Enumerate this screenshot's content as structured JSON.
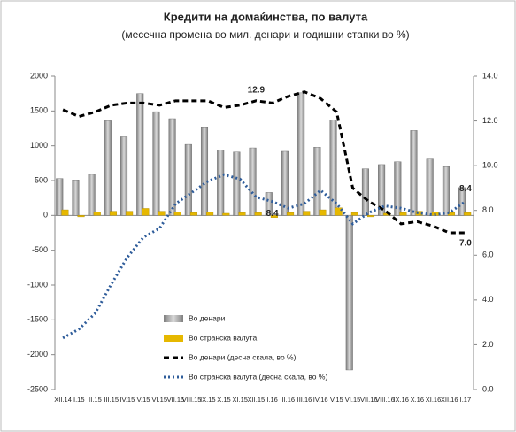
{
  "chart_data": {
    "type": "bar-line",
    "title": "Кредити на домаќинства, по валута",
    "subtitle": "(месечна промена во мил. денари и годишни стапки во %)",
    "categories": [
      "XII.14",
      "I.15",
      "II.15",
      "III.15",
      "IV.15",
      "V.15",
      "VI.15",
      "VII.15",
      "VIII.15",
      "IX.15",
      "X.15",
      "XI.15",
      "XII.15",
      "I.16",
      "II.16",
      "III.16",
      "IV.16",
      "V.15",
      "VI.15",
      "VII.16",
      "VIII.16",
      "IX.16",
      "X.16",
      "XI.16",
      "XII.16",
      "I.17"
    ],
    "series": [
      {
        "name": "Во денари",
        "kind": "bar",
        "color": "#a6a6a6",
        "values": [
          530,
          510,
          590,
          1360,
          1130,
          1750,
          1490,
          1390,
          1020,
          1260,
          940,
          910,
          970,
          330,
          920,
          1760,
          980,
          1370,
          -2220,
          670,
          730,
          770,
          1220,
          810,
          700,
          400
        ]
      },
      {
        "name": "Во странска валута",
        "kind": "bar",
        "color": "#e6b800",
        "values": [
          80,
          -20,
          50,
          60,
          60,
          100,
          60,
          50,
          40,
          50,
          30,
          40,
          40,
          -30,
          40,
          60,
          80,
          110,
          40,
          -20,
          30,
          40,
          60,
          50,
          40,
          40
        ]
      },
      {
        "name": "Во денари  (десна скала, во %)",
        "kind": "line",
        "axis": "y2",
        "color": "#000000",
        "dash": "6,4",
        "values": [
          12.5,
          12.2,
          12.4,
          12.7,
          12.8,
          12.8,
          12.7,
          12.9,
          12.9,
          12.9,
          12.6,
          12.7,
          12.9,
          12.8,
          13.1,
          13.3,
          13.0,
          12.4,
          9.0,
          8.4,
          8.0,
          7.4,
          7.5,
          7.3,
          7.0,
          7.0
        ],
        "value_labels": [
          null,
          null,
          null,
          null,
          null,
          null,
          null,
          null,
          null,
          null,
          null,
          null,
          "12.9",
          null,
          null,
          null,
          null,
          null,
          null,
          null,
          null,
          null,
          null,
          null,
          null,
          "7.0"
        ]
      },
      {
        "name": "Во странска валута  (десна скала, во %)",
        "kind": "line",
        "axis": "y2",
        "color": "#2e5c9a",
        "dash": "2,3",
        "values": [
          2.3,
          2.7,
          3.4,
          4.7,
          5.9,
          6.8,
          7.2,
          8.3,
          8.8,
          9.3,
          9.6,
          9.4,
          8.6,
          8.4,
          8.1,
          8.3,
          8.9,
          8.3,
          7.4,
          7.9,
          8.2,
          8.1,
          7.9,
          7.8,
          7.9,
          8.4
        ],
        "value_labels": [
          null,
          null,
          null,
          null,
          null,
          null,
          null,
          null,
          null,
          null,
          null,
          null,
          null,
          "8.4",
          null,
          null,
          null,
          null,
          null,
          null,
          null,
          null,
          null,
          null,
          null,
          "8.4"
        ]
      }
    ],
    "ylim": [
      -2500,
      2000
    ],
    "yticks": [
      -2500,
      -2000,
      -1500,
      -1000,
      -500,
      0,
      500,
      1000,
      1500,
      2000
    ],
    "y2lim": [
      0,
      14
    ],
    "y2ticks": [
      {
        "value": 0,
        "label": "0.0"
      },
      {
        "value": 2,
        "label": "2.0"
      },
      {
        "value": 4,
        "label": "4.0"
      },
      {
        "value": 6,
        "label": "6.0"
      },
      {
        "value": 8,
        "label": "8.0"
      },
      {
        "value": 10,
        "label": "10.0"
      },
      {
        "value": 12,
        "label": "12.0"
      },
      {
        "value": 14,
        "label": "14.0"
      }
    ]
  }
}
